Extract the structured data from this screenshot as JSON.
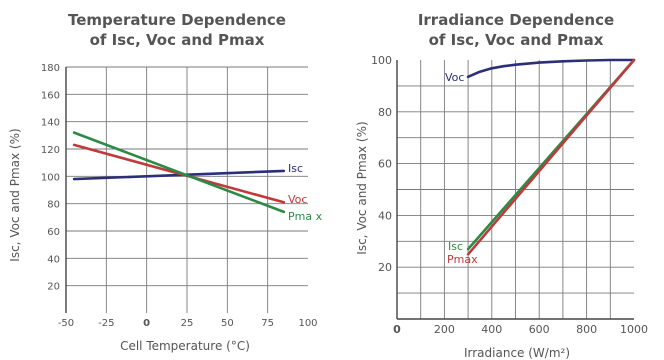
{
  "chart_data": [
    {
      "type": "line",
      "title_lines": [
        "Temperature Dependence",
        "of Isc, Voc and Pmax"
      ],
      "xlabel": "Cell Temperature (°C)",
      "ylabel": "Isc, Voc and Pmax (%)",
      "xlim": [
        -50,
        100
      ],
      "ylim": [
        0,
        180
      ],
      "x_ticks": [
        "-50",
        "-25",
        "0",
        "25",
        "50",
        "75",
        "100"
      ],
      "y_ticks": [
        "20",
        "40",
        "60",
        "80",
        "100",
        "120",
        "140",
        "160",
        "180"
      ],
      "grid": true,
      "series": [
        {
          "name": "Isc",
          "color": "#2b2f7a",
          "x": [
            -45,
            85
          ],
          "y": [
            98,
            104
          ]
        },
        {
          "name": "Voc",
          "color": "#c0393b",
          "x": [
            -45,
            85
          ],
          "y": [
            123,
            81
          ]
        },
        {
          "name": "Pma x",
          "color": "#2a8a46",
          "x": [
            -45,
            85
          ],
          "y": [
            132,
            74
          ]
        }
      ]
    },
    {
      "type": "line",
      "title_lines": [
        "Irradiance Dependence",
        "of Isc, Voc and Pmax"
      ],
      "xlabel": "Irradiance (W/m²)",
      "ylabel": "Isc, Voc and Pmax (%)",
      "xlim": [
        0,
        1000
      ],
      "ylim": [
        0,
        100
      ],
      "x_ticks": [
        "0",
        "200",
        "400",
        "600",
        "800",
        "1000"
      ],
      "y_ticks": [
        "20",
        "40",
        "60",
        "80",
        "100"
      ],
      "grid": true,
      "series": [
        {
          "name": "Voc",
          "color": "#2b2f7a",
          "x": [
            300,
            350,
            400,
            450,
            500,
            600,
            700,
            800,
            900,
            1000
          ],
          "y": [
            93.5,
            95.5,
            96.8,
            97.6,
            98.2,
            99.0,
            99.5,
            99.8,
            100,
            100
          ]
        },
        {
          "name": "Isc",
          "color": "#2a8a46",
          "x": [
            300,
            1000
          ],
          "y": [
            27,
            100
          ]
        },
        {
          "name": "Pmax",
          "color": "#c0393b",
          "x": [
            300,
            1000
          ],
          "y": [
            25,
            100
          ]
        }
      ]
    }
  ]
}
